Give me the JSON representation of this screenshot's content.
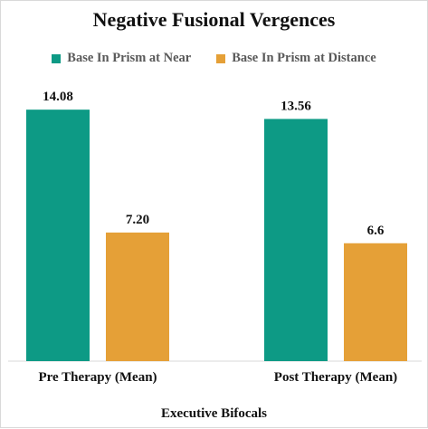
{
  "chart_data": {
    "type": "bar",
    "title": "Negative Fusional Vergences",
    "xlabel": "Executive Bifocals",
    "ylabel": "",
    "categories": [
      "Pre Therapy (Mean)",
      "Post Therapy (Mean)"
    ],
    "series": [
      {
        "name": "Base In Prism at Near",
        "values": [
          14.08,
          13.56
        ],
        "labels": [
          "14.08",
          "13.56"
        ],
        "color": "#0d9a85"
      },
      {
        "name": "Base In Prism at Distance",
        "values": [
          7.2,
          6.6
        ],
        "labels": [
          "7.20",
          "6.6"
        ],
        "color": "#e5a037"
      }
    ],
    "ylim": [
      0,
      15
    ],
    "grid": false,
    "legend": "top"
  }
}
